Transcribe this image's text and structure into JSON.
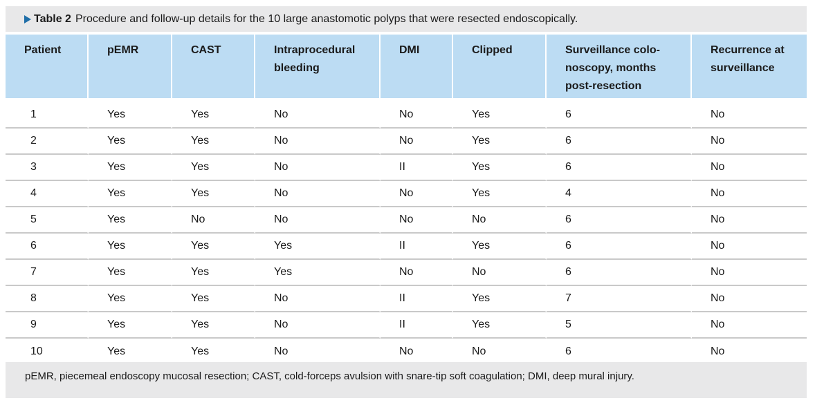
{
  "caption": {
    "label": "Table 2",
    "title": "Procedure and follow-up details for the 10 large anastomotic polyps that were resected endoscopically."
  },
  "table": {
    "headers": [
      "Patient",
      "pEMR",
      "CAST",
      "Intraprocedural bleeding",
      "DMI",
      "Clipped",
      "Surveillance colo-noscopy, months post-resection",
      "Recurrence at surveillance"
    ],
    "rows": [
      [
        "1",
        "Yes",
        "Yes",
        "No",
        "No",
        "Yes",
        "6",
        "No"
      ],
      [
        "2",
        "Yes",
        "Yes",
        "No",
        "No",
        "Yes",
        "6",
        "No"
      ],
      [
        "3",
        "Yes",
        "Yes",
        "No",
        "II",
        "Yes",
        "6",
        "No"
      ],
      [
        "4",
        "Yes",
        "Yes",
        "No",
        "No",
        "Yes",
        "4",
        "No"
      ],
      [
        "5",
        "Yes",
        "No",
        "No",
        "No",
        "No",
        "6",
        "No"
      ],
      [
        "6",
        "Yes",
        "Yes",
        "Yes",
        "II",
        "Yes",
        "6",
        "No"
      ],
      [
        "7",
        "Yes",
        "Yes",
        "Yes",
        "No",
        "No",
        "6",
        "No"
      ],
      [
        "8",
        "Yes",
        "Yes",
        "No",
        "II",
        "Yes",
        "7",
        "No"
      ],
      [
        "9",
        "Yes",
        "Yes",
        "No",
        "II",
        "Yes",
        "5",
        "No"
      ],
      [
        "10",
        "Yes",
        "Yes",
        "No",
        "No",
        "No",
        "6",
        "No"
      ]
    ]
  },
  "footnote": "pEMR, piecemeal endoscopy mucosal resection; CAST, cold-forceps avulsion with snare-tip soft coagulation; DMI, deep mural injury."
}
